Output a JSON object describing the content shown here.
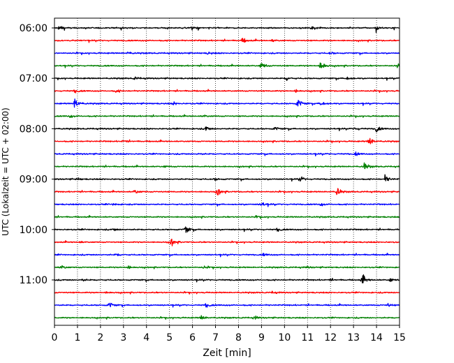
{
  "chart_data": {
    "type": "line",
    "title": "",
    "xlabel": "Zeit  [min]",
    "ylabel": "UTC (Lokalzeit = UTC + 02:00)",
    "xlim": [
      0,
      15
    ],
    "x_ticks": [
      "0",
      "1",
      "2",
      "3",
      "4",
      "5",
      "6",
      "7",
      "8",
      "9",
      "10",
      "11",
      "12",
      "13",
      "14",
      "15"
    ],
    "y_tick_labels": [
      "06:00",
      "07:00",
      "08:00",
      "09:00",
      "10:00",
      "11:00"
    ],
    "grid": "vertical dotted at each minute",
    "trace_interval_min": 15,
    "traces": [
      {
        "start": "06:00",
        "color": "#000000",
        "events": [
          [
            0.2,
            0.5
          ],
          [
            6.0,
            0.4
          ],
          [
            11.2,
            0.4
          ],
          [
            14.0,
            0.5
          ]
        ]
      },
      {
        "start": "06:15",
        "color": "#ff0000",
        "events": [
          [
            8.2,
            0.6
          ],
          [
            9.5,
            0.3
          ]
        ]
      },
      {
        "start": "06:30",
        "color": "#0000ff",
        "events": [
          [
            3.2,
            0.3
          ],
          [
            6.7,
            0.3
          ],
          [
            12.0,
            0.3
          ]
        ]
      },
      {
        "start": "06:45",
        "color": "#008000",
        "events": [
          [
            9.0,
            1.0
          ],
          [
            11.6,
            1.4
          ],
          [
            14.9,
            0.4
          ]
        ]
      },
      {
        "start": "07:00",
        "color": "#000000",
        "events": [
          [
            10.1,
            0.5
          ],
          [
            12.7,
            0.6
          ],
          [
            3.5,
            0.3
          ]
        ]
      },
      {
        "start": "07:15",
        "color": "#ff0000",
        "events": [
          [
            0.9,
            0.4
          ],
          [
            2.7,
            0.3
          ],
          [
            10.5,
            0.3
          ]
        ]
      },
      {
        "start": "07:30",
        "color": "#0000ff",
        "events": [
          [
            0.9,
            1.6
          ],
          [
            10.6,
            1.3
          ],
          [
            11.6,
            0.9
          ],
          [
            5.2,
            0.3
          ]
        ]
      },
      {
        "start": "07:45",
        "color": "#008000",
        "events": [
          [
            0.7,
            0.3
          ],
          [
            6.5,
            0.3
          ]
        ]
      },
      {
        "start": "08:00",
        "color": "#000000",
        "events": [
          [
            6.6,
            0.6
          ],
          [
            9.6,
            0.5
          ],
          [
            14.0,
            0.8
          ],
          [
            13.1,
            0.4
          ]
        ]
      },
      {
        "start": "08:15",
        "color": "#ff0000",
        "events": [
          [
            13.7,
            1.2
          ],
          [
            3.0,
            0.3
          ]
        ]
      },
      {
        "start": "08:30",
        "color": "#0000ff",
        "events": [
          [
            13.1,
            0.4
          ],
          [
            6.3,
            0.2
          ]
        ]
      },
      {
        "start": "08:45",
        "color": "#008000",
        "events": [
          [
            13.5,
            0.9
          ],
          [
            4.8,
            0.2
          ]
        ]
      },
      {
        "start": "09:00",
        "color": "#000000",
        "events": [
          [
            10.7,
            0.6
          ],
          [
            14.4,
            1.0
          ],
          [
            7.0,
            0.3
          ],
          [
            1.0,
            0.3
          ]
        ]
      },
      {
        "start": "09:15",
        "color": "#ff0000",
        "events": [
          [
            3.5,
            0.6
          ],
          [
            7.1,
            0.9
          ],
          [
            12.3,
            0.9
          ]
        ]
      },
      {
        "start": "09:30",
        "color": "#0000ff",
        "events": [
          [
            9.0,
            0.6
          ],
          [
            11.6,
            0.3
          ],
          [
            2.6,
            0.3
          ]
        ]
      },
      {
        "start": "09:45",
        "color": "#008000",
        "events": [
          [
            8.8,
            0.2
          ]
        ]
      },
      {
        "start": "10:00",
        "color": "#000000",
        "events": [
          [
            5.7,
            1.1
          ],
          [
            9.7,
            0.4
          ],
          [
            2.6,
            0.3
          ]
        ]
      },
      {
        "start": "10:15",
        "color": "#ff0000",
        "events": [
          [
            5.1,
            0.9
          ],
          [
            1.1,
            0.2
          ]
        ]
      },
      {
        "start": "10:30",
        "color": "#0000ff",
        "events": [
          [
            2.7,
            0.3
          ],
          [
            9.1,
            0.3
          ]
        ]
      },
      {
        "start": "10:45",
        "color": "#008000",
        "events": [
          [
            0.3,
            0.6
          ],
          [
            3.2,
            0.4
          ],
          [
            6.5,
            0.3
          ],
          [
            11.0,
            0.2
          ]
        ]
      },
      {
        "start": "11:00",
        "color": "#000000",
        "events": [
          [
            13.4,
            1.3
          ],
          [
            14.6,
            0.5
          ],
          [
            1.2,
            0.3
          ],
          [
            12.0,
            0.2
          ]
        ]
      },
      {
        "start": "11:15",
        "color": "#ff0000",
        "events": [
          [
            2.3,
            0.2
          ],
          [
            9.5,
            0.2
          ]
        ]
      },
      {
        "start": "11:30",
        "color": "#0000ff",
        "events": [
          [
            2.4,
            0.8
          ],
          [
            6.6,
            0.5
          ],
          [
            14.5,
            0.4
          ]
        ]
      },
      {
        "start": "11:45",
        "color": "#008000",
        "events": [
          [
            6.4,
            0.6
          ],
          [
            8.7,
            0.4
          ]
        ]
      }
    ]
  }
}
